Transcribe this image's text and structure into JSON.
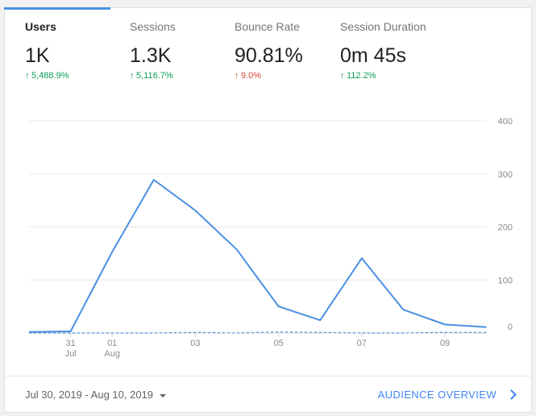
{
  "metrics": [
    {
      "label": "Users",
      "value": "1K",
      "delta": "5,488.9%",
      "trend": "up-good",
      "active": true
    },
    {
      "label": "Sessions",
      "value": "1.3K",
      "delta": "5,116.7%",
      "trend": "up-good"
    },
    {
      "label": "Bounce Rate",
      "value": "90.81%",
      "delta": "9.0%",
      "trend": "up-bad"
    },
    {
      "label": "Session Duration",
      "value": "0m 45s",
      "delta": "112.2%",
      "trend": "up-good"
    }
  ],
  "colors": {
    "accent": "#4a90e2",
    "positive": "#0f9d58",
    "negative": "#db4437",
    "link": "#4285f4"
  },
  "footer": {
    "date_range": "Jul 30, 2019 - Aug 10, 2019",
    "link_label": "AUDIENCE OVERVIEW"
  },
  "icons": {
    "trend_up": "arrow-up-icon",
    "dropdown": "caret-down-icon",
    "link": "chevron-right-icon"
  },
  "chart_data": {
    "type": "line",
    "x": [
      "Jul 30",
      "Jul 31",
      "Aug 01",
      "Aug 02",
      "Aug 03",
      "Aug 04",
      "Aug 05",
      "Aug 06",
      "Aug 07",
      "Aug 08",
      "Aug 09",
      "Aug 10"
    ],
    "x_tick_labels": [
      {
        "index": 1,
        "line1": "31",
        "line2": "Jul"
      },
      {
        "index": 2,
        "line1": "01",
        "line2": "Aug"
      },
      {
        "index": 4,
        "line1": "03",
        "line2": ""
      },
      {
        "index": 6,
        "line1": "05",
        "line2": ""
      },
      {
        "index": 8,
        "line1": "07",
        "line2": ""
      },
      {
        "index": 10,
        "line1": "09",
        "line2": ""
      }
    ],
    "y_ticks": [
      0,
      100,
      200,
      300,
      400
    ],
    "ylim": [
      0,
      400
    ],
    "grid": true,
    "series": [
      {
        "style": "solid",
        "values": [
          2,
          3,
          153,
          289,
          231,
          157,
          50,
          24,
          141,
          44,
          16,
          11
        ]
      },
      {
        "style": "dashed",
        "values": [
          0,
          0,
          0,
          0,
          1,
          0,
          2,
          1,
          0,
          0,
          1,
          1
        ]
      }
    ]
  }
}
